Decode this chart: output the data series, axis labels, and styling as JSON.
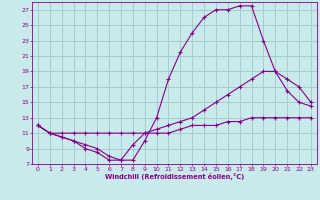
{
  "xlabel": "Windchill (Refroidissement éolien,°C)",
  "bg_color": "#c8eaea",
  "grid_color": "#9dc8c8",
  "line_color": "#880088",
  "xlim": [
    -0.5,
    23.5
  ],
  "ylim": [
    7,
    28
  ],
  "xticks": [
    0,
    1,
    2,
    3,
    4,
    5,
    6,
    7,
    8,
    9,
    10,
    11,
    12,
    13,
    14,
    15,
    16,
    17,
    18,
    19,
    20,
    21,
    22,
    23
  ],
  "yticks": [
    7,
    9,
    11,
    13,
    15,
    17,
    19,
    21,
    23,
    25,
    27
  ],
  "series": [
    {
      "x": [
        0,
        1,
        2,
        3,
        4,
        5,
        6,
        7,
        8,
        9,
        10,
        11,
        12,
        13,
        14,
        15,
        16,
        17,
        18,
        19,
        20,
        21,
        22,
        23
      ],
      "y": [
        12,
        11,
        10.5,
        10,
        9,
        8.5,
        7.5,
        7.5,
        9.5,
        11,
        11,
        11,
        11.5,
        12,
        12,
        12,
        12.5,
        12.5,
        13,
        13,
        13,
        13,
        13,
        13
      ]
    },
    {
      "x": [
        0,
        1,
        2,
        3,
        4,
        5,
        6,
        7,
        8,
        9,
        10,
        11,
        12,
        13,
        14,
        15,
        16,
        17,
        18,
        19,
        20,
        21,
        22,
        23
      ],
      "y": [
        12,
        11,
        11,
        11,
        11,
        11,
        11,
        11,
        11,
        11,
        11.5,
        12,
        12.5,
        13,
        14,
        15,
        16,
        17,
        18,
        19,
        19,
        18,
        17,
        15
      ]
    },
    {
      "x": [
        0,
        1,
        2,
        3,
        4,
        5,
        6,
        7,
        8,
        9,
        10,
        11,
        12,
        13,
        14,
        15,
        16,
        17,
        18,
        19,
        20,
        21,
        22,
        23
      ],
      "y": [
        12,
        11,
        10.5,
        10,
        9.5,
        9,
        8,
        7.5,
        7.5,
        10,
        13,
        18,
        21.5,
        24,
        26,
        27,
        27,
        27.5,
        27.5,
        23,
        19,
        16.5,
        15,
        14.5
      ]
    }
  ]
}
